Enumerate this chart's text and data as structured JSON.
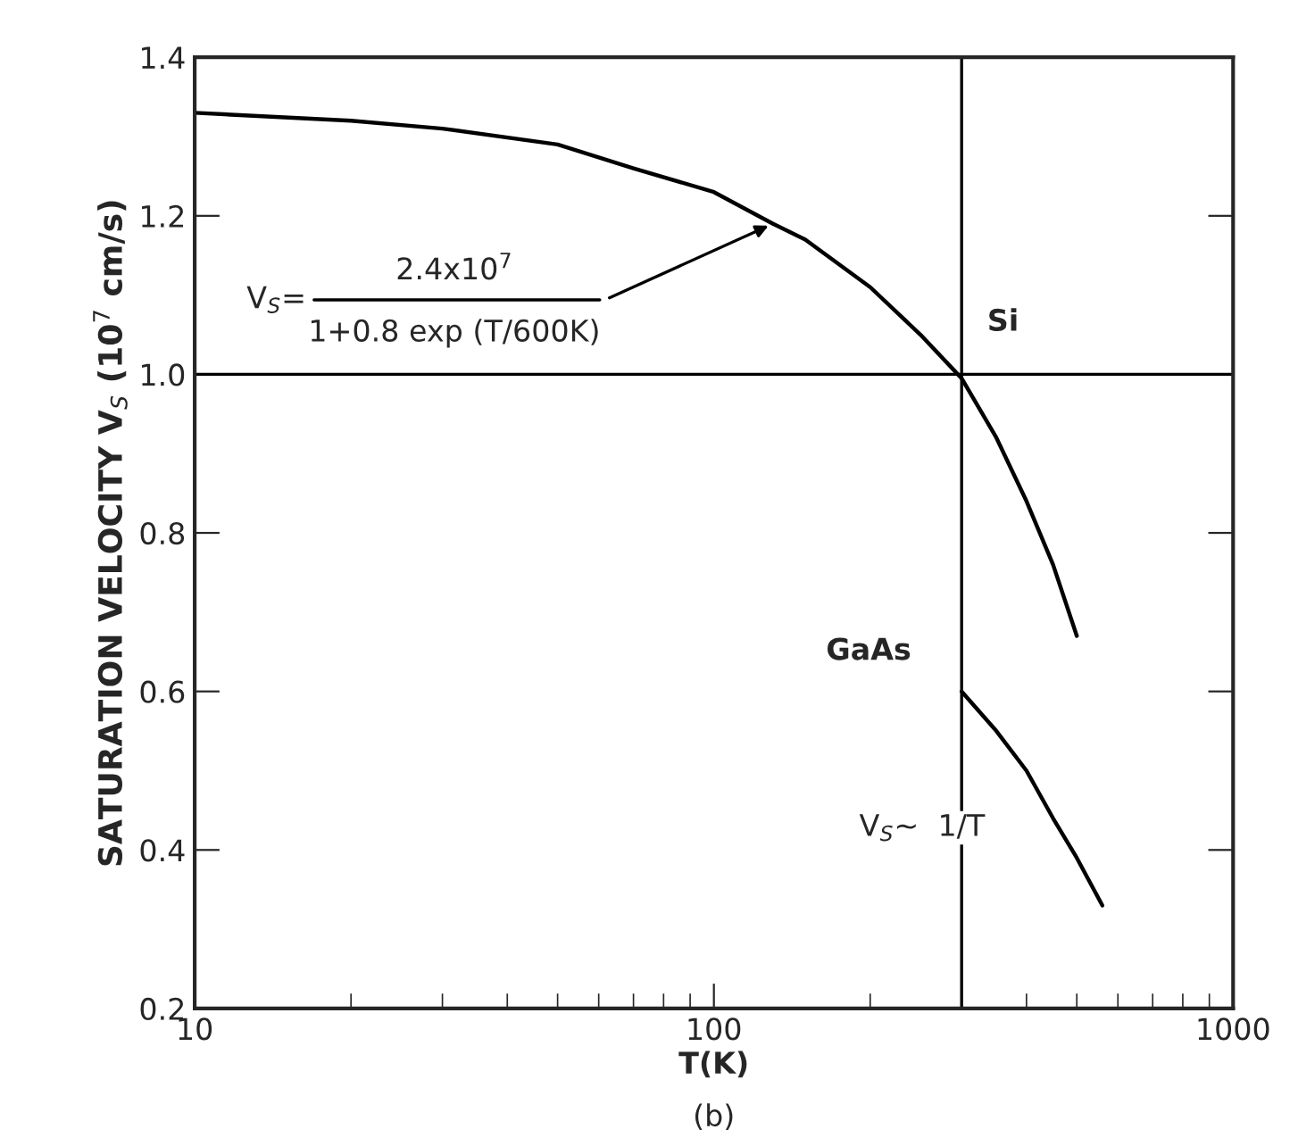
{
  "chart_data": {
    "type": "line",
    "xlabel": "T(K)",
    "ylabel": "SATURATION VELOCITY V$_{S}$ (10$^{7}$ cm/s)",
    "log": "x",
    "xlim": [
      10,
      1000
    ],
    "xticks": [
      10,
      100,
      1000
    ],
    "ylim": [
      0.2,
      1.4
    ],
    "yticks": [
      {
        "value": 0.2,
        "label": "0.2"
      },
      {
        "value": 0.4,
        "label": "0.4"
      },
      {
        "value": 0.6,
        "label": "0.6"
      },
      {
        "value": 0.8,
        "label": "0.8"
      },
      {
        "value": 1.0,
        "label": "1.0"
      },
      {
        "value": 1.2,
        "label": "1.2"
      },
      {
        "value": 1.4,
        "label": "1.4"
      }
    ],
    "grid": false,
    "legend": false,
    "series": [
      {
        "name": "Si",
        "color": "#000000",
        "x": [
          10,
          20,
          30,
          50,
          70,
          100,
          130,
          150,
          200,
          250,
          300,
          350,
          400,
          450,
          500
        ],
        "values": [
          1.33,
          1.32,
          1.31,
          1.29,
          1.26,
          1.23,
          1.19,
          1.17,
          1.11,
          1.05,
          0.995,
          0.92,
          0.84,
          0.76,
          0.67
        ]
      },
      {
        "name": "GaAs",
        "color": "#000000",
        "x": [
          300,
          350,
          400,
          450,
          500,
          560
        ],
        "values": [
          0.6,
          0.55,
          0.5,
          0.44,
          0.39,
          0.33
        ]
      }
    ],
    "ref_lines": [
      {
        "axis": "x",
        "value": 300,
        "label": null
      },
      {
        "axis": "y",
        "value": 1.0,
        "label": null
      }
    ],
    "annotations": [
      "V$_{S}$=",
      "2.4x10$^{7}$",
      {
        "text": "1+0.8 exp (T/600K)",
        "x": 130,
        "y": 1.19
      },
      "V$_{S}$∼  1/T",
      "(b)"
    ]
  }
}
